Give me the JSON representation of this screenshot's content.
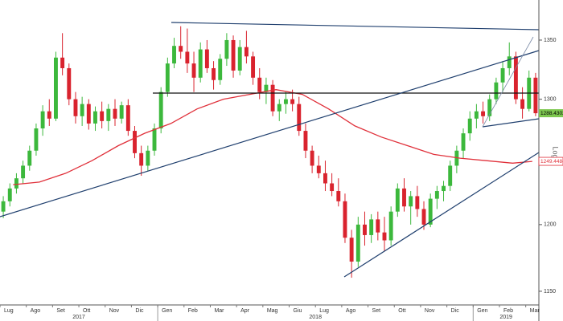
{
  "chart_data": {
    "type": "candlestick",
    "log_scale": true,
    "y_axis_label": "Log",
    "ylim": [
      1140,
      1385
    ],
    "yticks": [
      1150,
      1200,
      1300,
      1350
    ],
    "up_color": "#3cb83c",
    "down_color": "#d9232e",
    "ma_color": "#e0303a",
    "years": [
      {
        "label": "2017",
        "months": [
          {
            "label": "Lug",
            "ma": 1231,
            "candles": [
              [
                1210,
                1222,
                1205,
                1218
              ],
              [
                1218,
                1232,
                1214,
                1228
              ],
              [
                1228,
                1240,
                1224,
                1236
              ],
              [
                1236,
                1250,
                1232,
                1246
              ]
            ]
          },
          {
            "label": "Ago",
            "ma": 1233,
            "candles": [
              [
                1246,
                1262,
                1242,
                1258
              ],
              [
                1258,
                1280,
                1254,
                1276
              ],
              [
                1276,
                1295,
                1270,
                1290
              ],
              [
                1290,
                1300,
                1278,
                1284
              ]
            ]
          },
          {
            "label": "Set",
            "ma": 1240,
            "candles": [
              [
                1284,
                1340,
                1282,
                1335
              ],
              [
                1335,
                1356,
                1320,
                1326
              ],
              [
                1326,
                1330,
                1295,
                1300
              ],
              [
                1300,
                1306,
                1280,
                1286
              ]
            ]
          },
          {
            "label": "Ott",
            "ma": 1250,
            "candles": [
              [
                1286,
                1302,
                1278,
                1296
              ],
              [
                1296,
                1300,
                1275,
                1280
              ],
              [
                1280,
                1294,
                1274,
                1290
              ],
              [
                1290,
                1298,
                1276,
                1282
              ]
            ]
          },
          {
            "label": "Nov",
            "ma": 1262,
            "candles": [
              [
                1282,
                1296,
                1274,
                1292
              ],
              [
                1292,
                1300,
                1278,
                1284
              ],
              [
                1284,
                1298,
                1280,
                1295
              ],
              [
                1295,
                1300,
                1270,
                1274
              ]
            ]
          },
          {
            "label": "Dic",
            "ma": 1272,
            "candles": [
              [
                1274,
                1278,
                1252,
                1256
              ],
              [
                1256,
                1262,
                1238,
                1246
              ],
              [
                1246,
                1262,
                1242,
                1258
              ],
              [
                1258,
                1280,
                1254,
                1276
              ]
            ]
          }
        ]
      },
      {
        "label": "2018",
        "months": [
          {
            "label": "Gen",
            "ma": 1280,
            "candles": [
              [
                1276,
                1310,
                1272,
                1306
              ],
              [
                1306,
                1335,
                1302,
                1330
              ],
              [
                1330,
                1352,
                1326,
                1345
              ],
              [
                1345,
                1362,
                1334,
                1340
              ]
            ]
          },
          {
            "label": "Feb",
            "ma": 1292,
            "candles": [
              [
                1340,
                1360,
                1322,
                1330
              ],
              [
                1330,
                1340,
                1306,
                1318
              ],
              [
                1318,
                1348,
                1314,
                1342
              ],
              [
                1342,
                1350,
                1322,
                1326
              ]
            ]
          },
          {
            "label": "Mar",
            "ma": 1300,
            "candles": [
              [
                1326,
                1332,
                1308,
                1316
              ],
              [
                1316,
                1338,
                1312,
                1334
              ],
              [
                1334,
                1356,
                1328,
                1350
              ],
              [
                1350,
                1354,
                1318,
                1324
              ]
            ]
          },
          {
            "label": "Apr",
            "ma": 1304,
            "candles": [
              [
                1324,
                1350,
                1320,
                1344
              ],
              [
                1344,
                1358,
                1330,
                1336
              ],
              [
                1336,
                1340,
                1312,
                1318
              ],
              [
                1318,
                1326,
                1300,
                1306
              ]
            ]
          },
          {
            "label": "Mag",
            "ma": 1308,
            "candles": [
              [
                1306,
                1318,
                1296,
                1312
              ],
              [
                1312,
                1316,
                1286,
                1290
              ],
              [
                1290,
                1300,
                1282,
                1296
              ],
              [
                1296,
                1306,
                1288,
                1300
              ]
            ]
          },
          {
            "label": "Giu",
            "ma": 1304,
            "candles": [
              [
                1300,
                1308,
                1290,
                1296
              ],
              [
                1296,
                1302,
                1270,
                1274
              ],
              [
                1274,
                1280,
                1252,
                1258
              ],
              [
                1258,
                1262,
                1240,
                1246
              ]
            ]
          },
          {
            "label": "Lug",
            "ma": 1292,
            "candles": [
              [
                1246,
                1254,
                1236,
                1240
              ],
              [
                1240,
                1250,
                1226,
                1232
              ],
              [
                1232,
                1240,
                1222,
                1226
              ],
              [
                1226,
                1236,
                1214,
                1218
              ]
            ]
          },
          {
            "label": "Ago",
            "ma": 1278,
            "candles": [
              [
                1218,
                1224,
                1186,
                1190
              ],
              [
                1190,
                1196,
                1160,
                1172
              ],
              [
                1172,
                1206,
                1168,
                1200
              ],
              [
                1200,
                1210,
                1184,
                1192
              ]
            ]
          },
          {
            "label": "Set",
            "ma": 1269,
            "candles": [
              [
                1192,
                1208,
                1186,
                1204
              ],
              [
                1204,
                1210,
                1188,
                1194
              ],
              [
                1194,
                1206,
                1180,
                1188
              ],
              [
                1188,
                1214,
                1184,
                1210
              ]
            ]
          },
          {
            "label": "Ott",
            "ma": 1262,
            "candles": [
              [
                1210,
                1232,
                1206,
                1228
              ],
              [
                1228,
                1236,
                1210,
                1214
              ],
              [
                1214,
                1226,
                1200,
                1222
              ],
              [
                1222,
                1230,
                1206,
                1212
              ]
            ]
          },
          {
            "label": "Nov",
            "ma": 1255,
            "candles": [
              [
                1212,
                1218,
                1196,
                1200
              ],
              [
                1200,
                1224,
                1198,
                1220
              ],
              [
                1220,
                1230,
                1212,
                1226
              ],
              [
                1226,
                1234,
                1218,
                1230
              ]
            ]
          },
          {
            "label": "Dic",
            "ma": 1252,
            "candles": [
              [
                1230,
                1250,
                1226,
                1246
              ],
              [
                1246,
                1262,
                1240,
                1258
              ],
              [
                1258,
                1276,
                1252,
                1272
              ],
              [
                1272,
                1290,
                1266,
                1284
              ]
            ]
          }
        ]
      },
      {
        "label": "2019",
        "months": [
          {
            "label": "Gen",
            "ma": 1250,
            "candles": [
              [
                1284,
                1296,
                1276,
                1290
              ],
              [
                1290,
                1298,
                1280,
                1286
              ],
              [
                1286,
                1304,
                1282,
                1300
              ],
              [
                1300,
                1318,
                1296,
                1314
              ]
            ]
          },
          {
            "label": "Feb",
            "ma": 1248,
            "candles": [
              [
                1314,
                1332,
                1306,
                1326
              ],
              [
                1326,
                1348,
                1320,
                1336
              ],
              [
                1336,
                1340,
                1296,
                1300
              ],
              [
                1300,
                1310,
                1284,
                1292
              ]
            ]
          },
          {
            "label": "Mar",
            "ma": 1249.4484,
            "candles": [
              [
                1292,
                1324,
                1290,
                1318
              ],
              [
                1318,
                1322,
                1286,
                1288.4302
              ]
            ]
          }
        ]
      }
    ]
  }
}
